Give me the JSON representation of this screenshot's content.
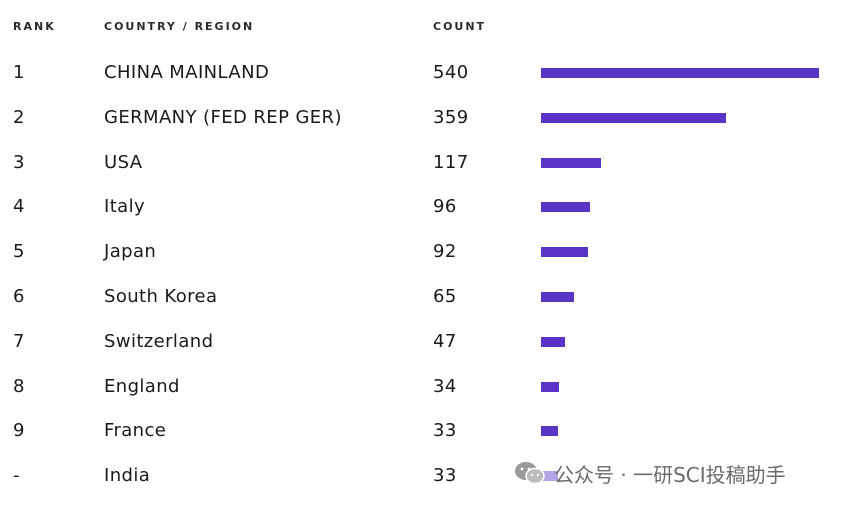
{
  "header": {
    "rank": "RANK",
    "country": "COUNTRY / REGION",
    "count": "COUNT"
  },
  "chart_data": {
    "type": "bar",
    "title": "",
    "xlabel": "COUNT",
    "ylabel": "COUNTRY / REGION",
    "orientation": "horizontal",
    "bar_color": "#5a33c7",
    "categories": [
      "CHINA MAINLAND",
      "GERMANY (FED REP GER)",
      "USA",
      "Italy",
      "Japan",
      "South Korea",
      "Switzerland",
      "England",
      "France",
      "India"
    ],
    "ranks": [
      "1",
      "2",
      "3",
      "4",
      "5",
      "6",
      "7",
      "8",
      "9",
      "-"
    ],
    "values": [
      540,
      359,
      117,
      96,
      92,
      65,
      47,
      34,
      33,
      33
    ],
    "xlim": [
      0,
      540
    ],
    "grid": false
  },
  "watermark": {
    "icon": "wechat-icon",
    "text": "公众号 · 一研SCI投稿助手"
  }
}
